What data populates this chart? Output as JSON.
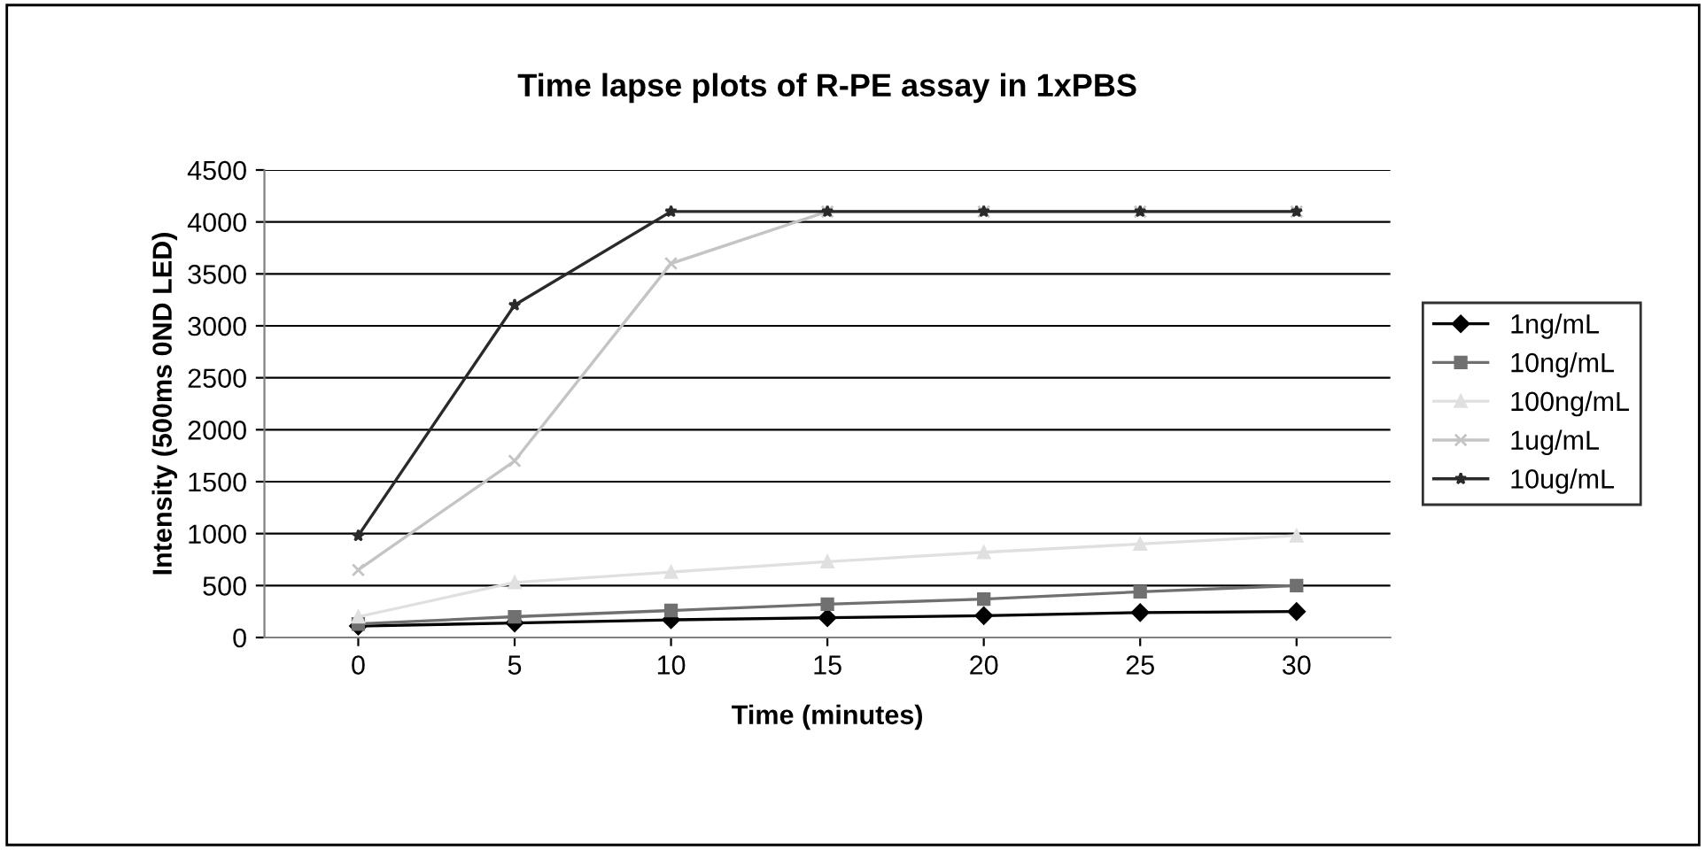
{
  "chart_data": {
    "type": "line",
    "title": "Time lapse plots of R-PE assay in 1xPBS",
    "xlabel": "Time (minutes)",
    "ylabel": "Intensity (500ms 0ND LED)",
    "categories": [
      "0",
      "5",
      "10",
      "15",
      "20",
      "25",
      "30"
    ],
    "ylim": [
      0,
      4500
    ],
    "yticks": [
      0,
      500,
      1000,
      1500,
      2000,
      2500,
      3000,
      3500,
      4000,
      4500
    ],
    "grid": "y",
    "legend": "right",
    "series": [
      {
        "name": "1ng/mL",
        "color": "#000000",
        "marker": "diamond",
        "values": [
          110,
          140,
          170,
          190,
          210,
          240,
          250
        ]
      },
      {
        "name": "10ng/mL",
        "color": "#707070",
        "marker": "square",
        "values": [
          130,
          200,
          260,
          320,
          370,
          440,
          500
        ]
      },
      {
        "name": "100ng/mL",
        "color": "#e0e0e0",
        "marker": "triangle",
        "values": [
          200,
          530,
          630,
          730,
          820,
          900,
          980
        ]
      },
      {
        "name": "1ug/mL",
        "color": "#c4c4c4",
        "marker": "cross",
        "values": [
          650,
          1700,
          3600,
          4100,
          4100,
          4100,
          4100
        ]
      },
      {
        "name": "10ug/mL",
        "color": "#2a2a2a",
        "marker": "star",
        "values": [
          980,
          3200,
          4100,
          4100,
          4100,
          4100,
          4100
        ]
      }
    ]
  }
}
